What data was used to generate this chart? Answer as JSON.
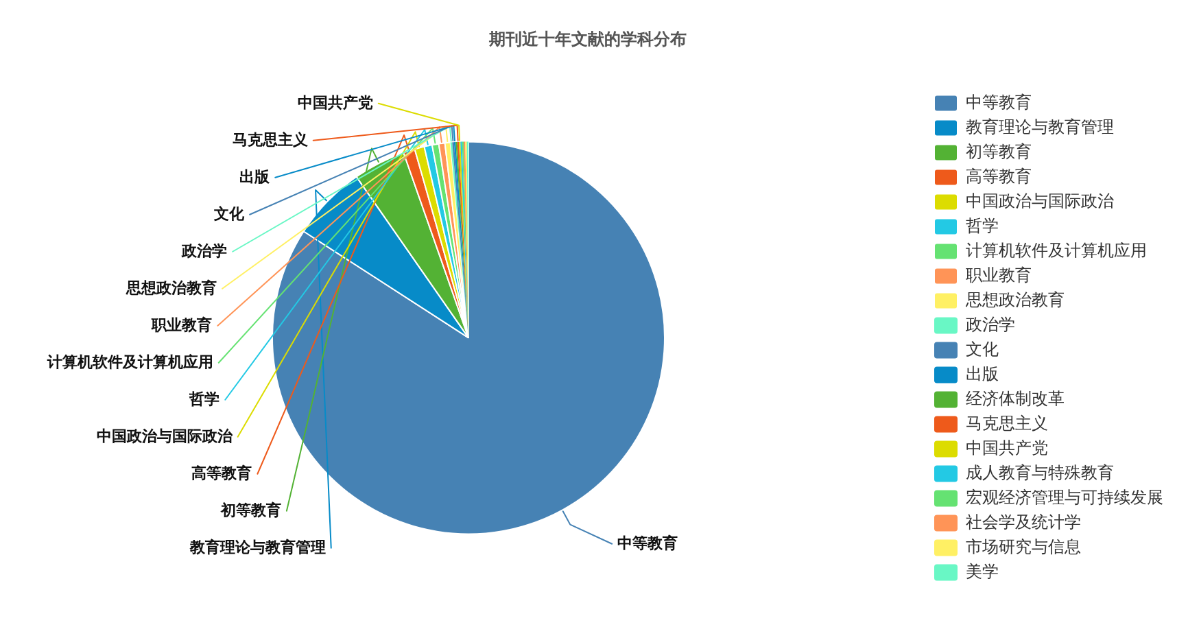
{
  "chart_data": {
    "type": "pie",
    "title": "期刊近十年文献的学科分布",
    "categories": [
      "中等教育",
      "教育理论与教育管理",
      "初等教育",
      "高等教育",
      "中国政治与国际政治",
      "哲学",
      "计算机软件及计算机应用",
      "职业教育",
      "思想政治教育",
      "政治学",
      "文化",
      "出版",
      "经济体制改革",
      "马克思主义",
      "中国共产党",
      "成人教育与特殊教育",
      "宏观经济管理与可持续发展",
      "社会学及统计学",
      "市场研究与信息",
      "美学"
    ],
    "values": [
      84.1,
      6.2,
      4.3,
      0.95,
      0.8,
      0.65,
      0.55,
      0.5,
      0.45,
      0.15,
      0.14,
      0.14,
      0.13,
      0.13,
      0.13,
      0.13,
      0.13,
      0.13,
      0.13,
      0.13
    ],
    "colors": [
      "#4682b4",
      "#078bc8",
      "#53b234",
      "#ee5a1b",
      "#dcdc00",
      "#23c9e4",
      "#65e272",
      "#ff9457",
      "#fff064",
      "#69f7c5",
      "#4682b4",
      "#078bc8",
      "#53b234",
      "#ee5a1b",
      "#dcdc00",
      "#23c9e4",
      "#65e272",
      "#ff9457",
      "#fff064",
      "#69f7c5"
    ],
    "value_labels": [
      "中等教育",
      "教育理论与教育管理",
      "初等教育",
      "高等教育",
      "中国政治与国际政治",
      "哲学",
      "计算机软件及计算机应用",
      "职业教育",
      "思想政治教育",
      "政治学",
      "文化",
      "出版",
      null,
      "马克思主义",
      "中国共产党",
      null,
      null,
      null,
      null,
      null
    ],
    "legend": "right"
  }
}
